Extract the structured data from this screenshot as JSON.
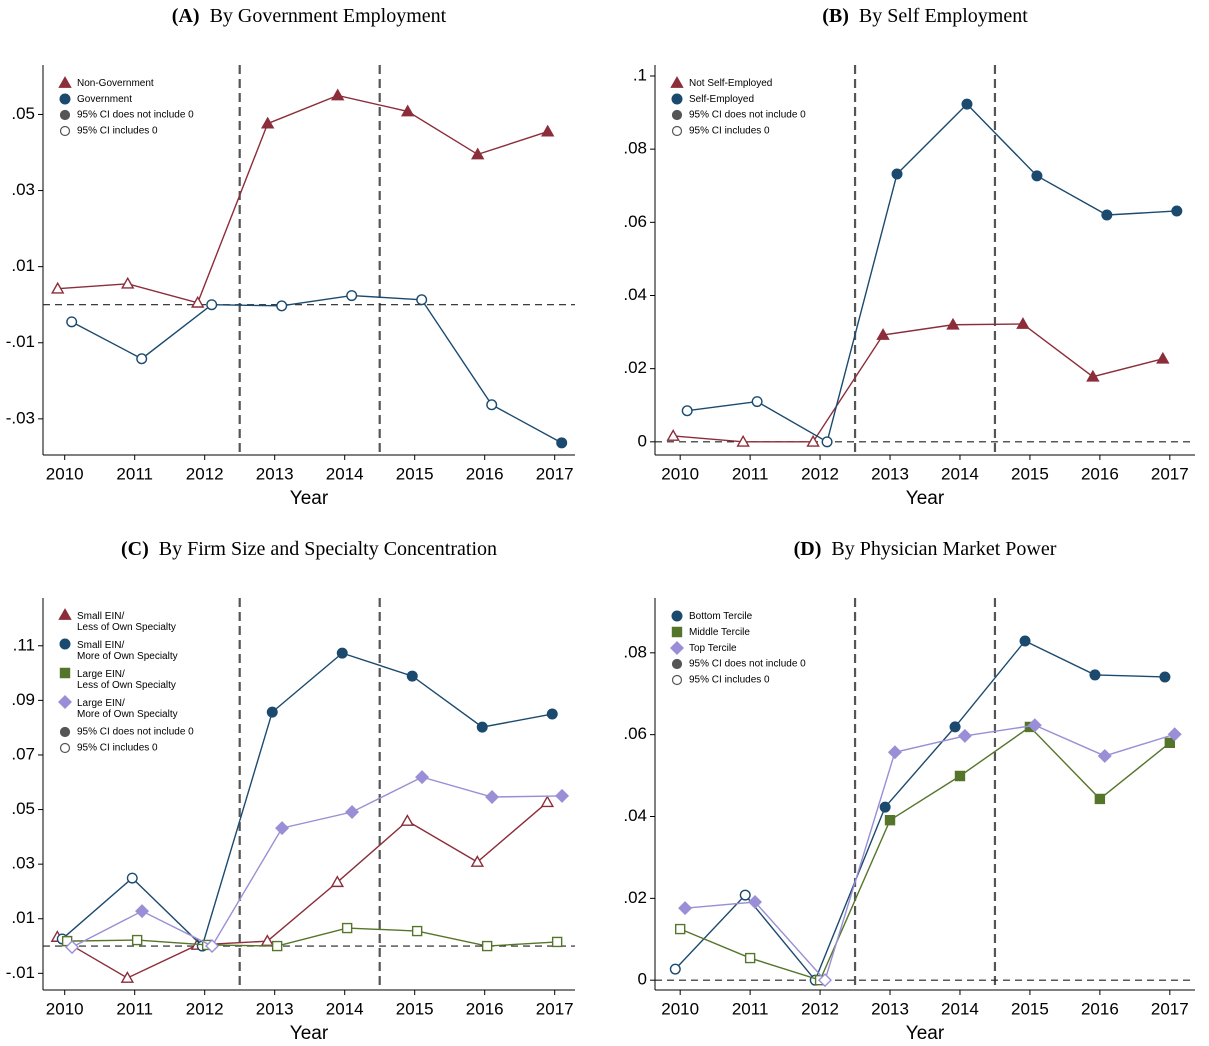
{
  "chart_data": [
    {
      "type": "line",
      "label": "(A)",
      "title": "By Government Employment",
      "xlabel": "Year",
      "x": [
        2010,
        2011,
        2012,
        2013,
        2014,
        2015,
        2016,
        2017
      ],
      "xlim": [
        2009.69,
        2017.29
      ],
      "xticks": [
        2010,
        2011,
        2012,
        2013,
        2014,
        2015,
        2016,
        2017
      ],
      "ylim": [
        -0.0395,
        0.063
      ],
      "yticks": [
        {
          "value": -0.03,
          "label": "-.03"
        },
        {
          "value": -0.01,
          "label": "-.01"
        },
        {
          "value": 0.01,
          "label": ".01"
        },
        {
          "value": 0.03,
          "label": ".03"
        },
        {
          "value": 0.05,
          "label": ".05"
        }
      ],
      "vlines": [
        2012.5,
        2014.5
      ],
      "hline": 0,
      "series": [
        {
          "name": "Non-Government",
          "color": "#8c2d3a",
          "marker": "triangle",
          "values": [
            0.0042,
            0.0055,
            0.0005,
            0.0476,
            0.055,
            0.0508,
            0.0395,
            0.0455
          ],
          "filled": [
            false,
            false,
            false,
            true,
            true,
            true,
            true,
            true
          ]
        },
        {
          "name": "Government",
          "color": "#1b4a6e",
          "marker": "circle",
          "values": [
            -0.0045,
            -0.0142,
            0,
            -0.0003,
            0.0024,
            0.0013,
            -0.0263,
            -0.0363
          ],
          "filled": [
            false,
            false,
            false,
            false,
            false,
            false,
            false,
            true
          ]
        }
      ],
      "ci_legend": [
        "95% CI does not include 0",
        "95% CI includes 0"
      ]
    },
    {
      "type": "line",
      "label": "(B)",
      "title": "By Self Employment",
      "xlabel": "Year",
      "x": [
        2010,
        2011,
        2012,
        2013,
        2014,
        2015,
        2016,
        2017
      ],
      "xlim": [
        2009.64,
        2017.36
      ],
      "xticks": [
        2010,
        2011,
        2012,
        2013,
        2014,
        2015,
        2016,
        2017
      ],
      "ylim": [
        -0.0036,
        0.103
      ],
      "yticks": [
        0,
        {
          "value": 0.02,
          "label": ".02"
        },
        {
          "value": 0.04,
          "label": ".04"
        },
        {
          "value": 0.06,
          "label": ".06"
        },
        {
          "value": 0.08,
          "label": ".08"
        },
        {
          "value": 0.1,
          "label": ".1"
        }
      ],
      "vlines": [
        2012.5,
        2014.5
      ],
      "hline": 0,
      "series": [
        {
          "name": "Not Self-Employed",
          "color": "#8c2d3a",
          "marker": "triangle",
          "values": [
            0.0016,
            0,
            0,
            0.0292,
            0.032,
            0.0322,
            0.0178,
            0.0227
          ],
          "filled": [
            false,
            false,
            false,
            true,
            true,
            true,
            true,
            true
          ]
        },
        {
          "name": "Self-Employed",
          "color": "#1b4a6e",
          "marker": "circle",
          "values": [
            0.0085,
            0.011,
            0,
            0.0732,
            0.0923,
            0.0727,
            0.062,
            0.0631
          ],
          "filled": [
            false,
            false,
            false,
            true,
            true,
            true,
            true,
            true
          ]
        }
      ],
      "ci_legend": [
        "95% CI does not include 0",
        "95% CI includes 0"
      ]
    },
    {
      "type": "line",
      "label": "(C)",
      "title": "By Firm Size and Specialty Concentration",
      "xlabel": "Year",
      "x": [
        2010,
        2011,
        2012,
        2013,
        2014,
        2015,
        2016,
        2017
      ],
      "xlim": [
        2009.69,
        2017.29
      ],
      "xticks": [
        2010,
        2011,
        2012,
        2013,
        2014,
        2015,
        2016,
        2017
      ],
      "ylim": [
        -0.0161,
        0.1275
      ],
      "yticks": [
        {
          "value": -0.01,
          "label": "-.01"
        },
        {
          "value": 0.01,
          "label": ".01"
        },
        {
          "value": 0.03,
          "label": ".03"
        },
        {
          "value": 0.05,
          "label": ".05"
        },
        {
          "value": 0.07,
          "label": ".07"
        },
        {
          "value": 0.09,
          "label": ".09"
        },
        {
          "value": 0.11,
          "label": ".11"
        }
      ],
      "vlines": [
        2012.5,
        2014.5
      ],
      "hline": 0,
      "series": [
        {
          "name": "Small EIN/\nLess of Own Specialty",
          "color": "#8c2d3a",
          "marker": "triangle",
          "values": [
            0.0033,
            -0.0117,
            0.0004,
            0.0018,
            0.0234,
            0.0458,
            0.0308,
            0.0527
          ],
          "filled": [
            false,
            false,
            false,
            false,
            false,
            false,
            false,
            false
          ]
        },
        {
          "name": "Small EIN/\nMore of Own Specialty",
          "color": "#1b4a6e",
          "marker": "circle",
          "values": [
            0.0026,
            0.0249,
            0,
            0.0857,
            0.1073,
            0.0989,
            0.0802,
            0.085
          ],
          "filled": [
            false,
            false,
            false,
            true,
            true,
            true,
            true,
            true
          ]
        },
        {
          "name": "Large EIN/\nLess of Own Specialty",
          "color": "#55752a",
          "marker": "square",
          "values": [
            0.0018,
            0.0022,
            0.0004,
            0,
            0.0066,
            0.0055,
            0,
            0.0015
          ],
          "filled": [
            false,
            false,
            false,
            false,
            false,
            false,
            false,
            false
          ]
        },
        {
          "name": "Large EIN/\nMore of Own Specialty",
          "color": "#9a8fd6",
          "marker": "diamond",
          "values": [
            -0.0004,
            0.0128,
            0,
            0.0432,
            0.0491,
            0.0619,
            0.0546,
            0.055
          ],
          "filled": [
            false,
            true,
            false,
            true,
            true,
            true,
            true,
            true
          ]
        }
      ],
      "ci_legend": [
        "95% CI does not include 0",
        "95% CI includes 0"
      ]
    },
    {
      "type": "line",
      "label": "(D)",
      "title": "By Physician Market Power",
      "xlabel": "Year",
      "x": [
        2010,
        2011,
        2012,
        2013,
        2014,
        2015,
        2016,
        2017
      ],
      "xlim": [
        2009.64,
        2017.36
      ],
      "xticks": [
        2010,
        2011,
        2012,
        2013,
        2014,
        2015,
        2016,
        2017
      ],
      "ylim": [
        -0.0024,
        0.0934
      ],
      "yticks": [
        0,
        {
          "value": 0.02,
          "label": ".02"
        },
        {
          "value": 0.04,
          "label": ".04"
        },
        {
          "value": 0.06,
          "label": ".06"
        },
        {
          "value": 0.08,
          "label": ".08"
        }
      ],
      "vlines": [
        2012.5,
        2014.5
      ],
      "hline": 0,
      "series": [
        {
          "name": "Bottom Tercile",
          "color": "#1b4a6e",
          "marker": "circle",
          "values": [
            0.0027,
            0.0208,
            0,
            0.0423,
            0.0619,
            0.0829,
            0.0746,
            0.0741
          ],
          "filled": [
            false,
            false,
            false,
            true,
            true,
            true,
            true,
            true
          ]
        },
        {
          "name": "Middle Tercile",
          "color": "#55752a",
          "marker": "square",
          "values": [
            0.0125,
            0.0054,
            0,
            0.0391,
            0.0499,
            0.0619,
            0.0443,
            0.058
          ],
          "filled": [
            false,
            false,
            false,
            true,
            true,
            true,
            true,
            true
          ]
        },
        {
          "name": "Top Tercile",
          "color": "#9a8fd6",
          "marker": "diamond",
          "values": [
            0.0176,
            0.0191,
            0,
            0.0557,
            0.0597,
            0.0623,
            0.0548,
            0.0601
          ],
          "filled": [
            true,
            true,
            false,
            true,
            true,
            true,
            true,
            true
          ]
        }
      ],
      "ci_legend": [
        "95% CI does not include 0",
        "95% CI includes 0"
      ]
    }
  ]
}
